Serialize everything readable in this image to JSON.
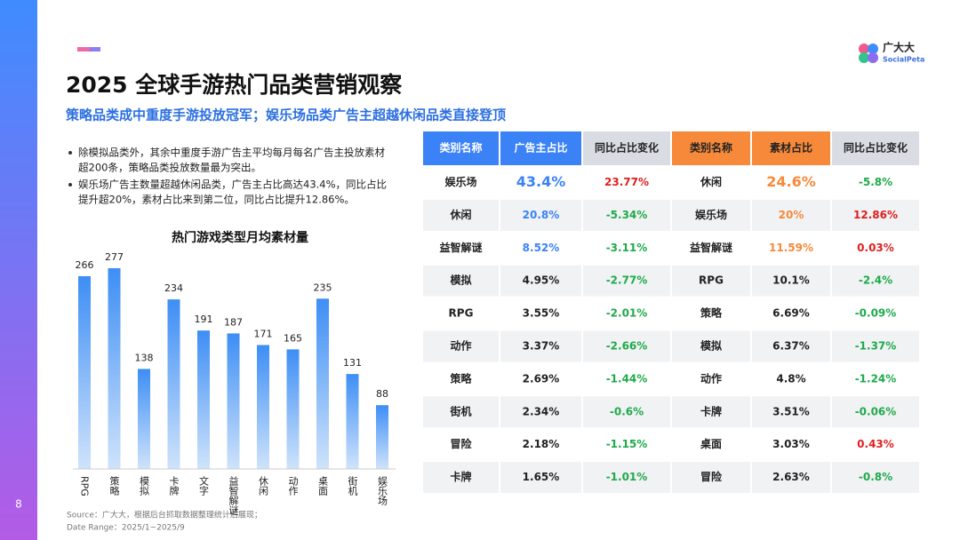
{
  "page_number": "8",
  "logo": {
    "name": "广大大",
    "sub": "SocialPeta"
  },
  "header": {
    "title": "2025 全球手游热门品类营销观察",
    "subtitle": "策略品类成中重度手游投放冠军；娱乐场品类广告主超越休闲品类直接登顶"
  },
  "bullets": [
    [
      "除模拟品类外，其余中重度手游广告主平均每月每名广告主投放素材",
      "超200条，策略品类投放数量最为突出。"
    ],
    [
      "娱乐场广告主数量超越休闲品类，广告主占比高达43.4%，同比占比",
      "提升超20%，素材占比来到第二位，同比占比提升12.86%。"
    ]
  ],
  "chart_data": {
    "type": "bar",
    "title": "热门游戏类型月均素材量",
    "categories": [
      "RPG",
      "策略",
      "模拟",
      "卡牌",
      "文字",
      "益智解谜",
      "休闲",
      "动作",
      "桌面",
      "街机",
      "娱乐场"
    ],
    "values": [
      266,
      277,
      138,
      234,
      191,
      187,
      171,
      165,
      235,
      131,
      88
    ]
  },
  "table": {
    "header": [
      "类别名称",
      "广告主占比",
      "同比占比变化",
      "类别名称",
      "素材占比",
      "同比占比变化"
    ],
    "rows": [
      [
        "娱乐场",
        "43.4%",
        "23.77%",
        "休闲",
        "24.6%",
        "-5.8%"
      ],
      [
        "休闲",
        "20.8%",
        "-5.34%",
        "娱乐场",
        "20%",
        "12.86%"
      ],
      [
        "益智解谜",
        "8.52%",
        "-3.11%",
        "益智解谜",
        "11.59%",
        "0.03%"
      ],
      [
        "模拟",
        "4.95%",
        "-2.77%",
        "RPG",
        "10.1%",
        "-2.4%"
      ],
      [
        "RPG",
        "3.55%",
        "-2.01%",
        "策略",
        "6.69%",
        "-0.09%"
      ],
      [
        "动作",
        "3.37%",
        "-2.66%",
        "模拟",
        "6.37%",
        "-1.37%"
      ],
      [
        "策略",
        "2.69%",
        "-1.44%",
        "动作",
        "4.8%",
        "-1.24%"
      ],
      [
        "街机",
        "2.34%",
        "-0.6%",
        "卡牌",
        "3.51%",
        "-0.06%"
      ],
      [
        "冒险",
        "2.18%",
        "-1.15%",
        "桌面",
        "3.03%",
        "0.43%"
      ],
      [
        "卡牌",
        "1.65%",
        "-1.01%",
        "冒险",
        "2.63%",
        "-0.8%"
      ]
    ]
  },
  "source": [
    "Source：广大大，根据后台抓取数据整理统计后展现；",
    "Date Range：2025/1~2025/9"
  ]
}
